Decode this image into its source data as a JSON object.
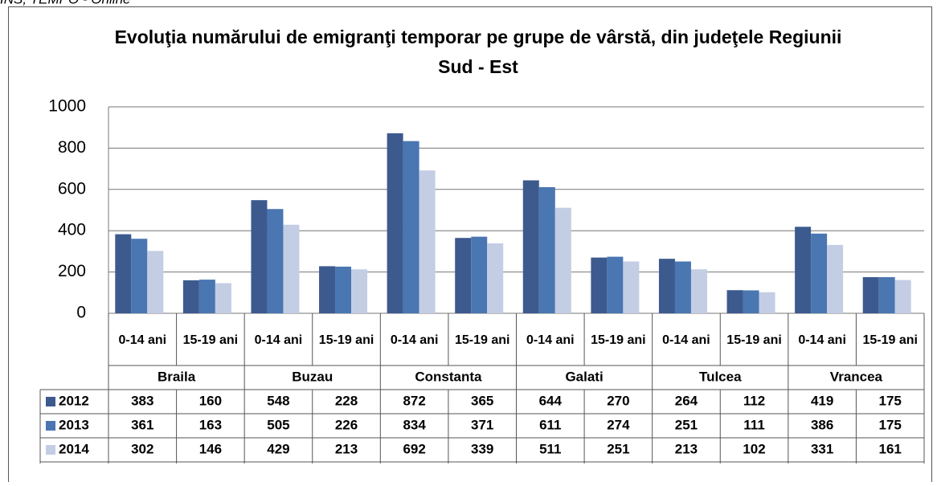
{
  "source": "INS, TEMPO - Online",
  "chart_data": {
    "type": "bar",
    "title": "Evoluţia numărului de emigranţi temporar pe grupe de vârstă, din judeţele Regiunii Sud - Est",
    "categories": [
      "0-14 ani",
      "15-19 ani",
      "0-14 ani",
      "15-19 ani",
      "0-14 ani",
      "15-19 ani",
      "0-14 ani",
      "15-19 ani",
      "0-14 ani",
      "15-19 ani",
      "0-14 ani",
      "15-19 ani"
    ],
    "category_groups": [
      "Braila",
      "Buzau",
      "Constanta",
      "Galati",
      "Tulcea",
      "Vrancea"
    ],
    "series": [
      {
        "name": "2012",
        "color": "#3d5a8e",
        "values": [
          383,
          160,
          548,
          228,
          872,
          365,
          644,
          270,
          264,
          112,
          419,
          175
        ]
      },
      {
        "name": "2013",
        "color": "#4a76b2",
        "values": [
          361,
          163,
          505,
          226,
          834,
          371,
          611,
          274,
          251,
          111,
          386,
          175
        ]
      },
      {
        "name": "2014",
        "color": "#c3cde4",
        "values": [
          302,
          146,
          429,
          213,
          692,
          339,
          511,
          251,
          213,
          102,
          331,
          161
        ]
      }
    ],
    "ylim": [
      0,
      1000
    ],
    "yticks": [
      0,
      200,
      400,
      600,
      800,
      1000
    ],
    "grid": true,
    "data_table": true
  }
}
